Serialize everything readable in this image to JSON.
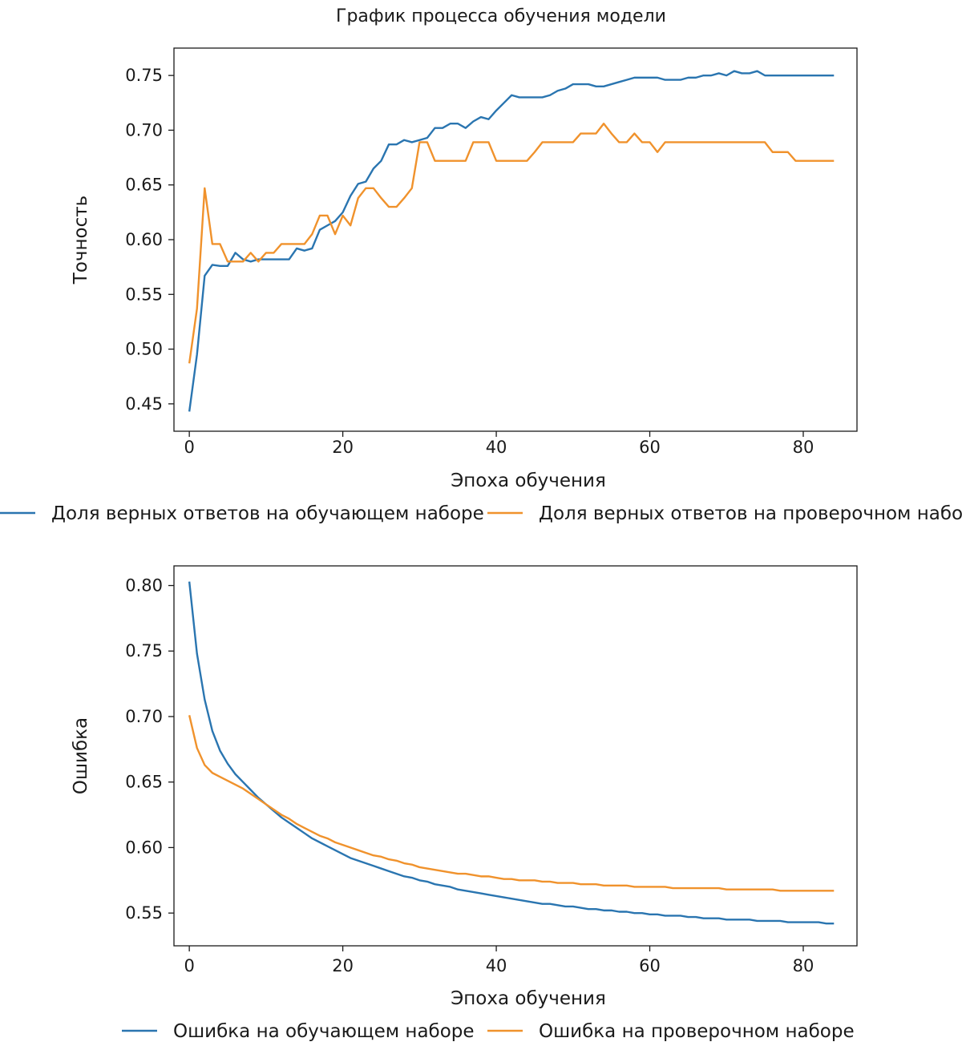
{
  "title": "График процесса обучения модели",
  "colors": {
    "train": "#2a75b0",
    "val": "#f0922c",
    "axis": "#1a1a1a"
  },
  "chart_data": [
    {
      "type": "line",
      "title": "",
      "xlabel": "Эпоха обучения",
      "ylabel": "Точность",
      "xlim": [
        -2,
        87
      ],
      "ylim": [
        0.425,
        0.775
      ],
      "xticks": [
        0,
        20,
        40,
        60,
        80
      ],
      "yticks": [
        0.45,
        0.5,
        0.55,
        0.6,
        0.65,
        0.7,
        0.75
      ],
      "grid": false,
      "legend_position": "bottom",
      "series": [
        {
          "name": "Доля верных ответов на обучающем наборе",
          "color_key": "train",
          "x": [
            0,
            1,
            2,
            3,
            4,
            5,
            6,
            7,
            8,
            9,
            10,
            11,
            12,
            13,
            14,
            15,
            16,
            17,
            18,
            19,
            20,
            21,
            22,
            23,
            24,
            25,
            26,
            27,
            28,
            29,
            30,
            31,
            32,
            33,
            34,
            35,
            36,
            37,
            38,
            39,
            40,
            41,
            42,
            43,
            44,
            45,
            46,
            47,
            48,
            49,
            50,
            51,
            52,
            53,
            54,
            55,
            56,
            57,
            58,
            59,
            60,
            61,
            62,
            63,
            64,
            65,
            66,
            67,
            68,
            69,
            70,
            71,
            72,
            73,
            74,
            75,
            76,
            77,
            78,
            79,
            80,
            81,
            82,
            83,
            84
          ],
          "y": [
            0.443,
            0.495,
            0.567,
            0.577,
            0.576,
            0.576,
            0.588,
            0.582,
            0.58,
            0.582,
            0.582,
            0.582,
            0.582,
            0.582,
            0.592,
            0.59,
            0.592,
            0.609,
            0.613,
            0.617,
            0.625,
            0.64,
            0.651,
            0.653,
            0.665,
            0.672,
            0.687,
            0.687,
            0.691,
            0.689,
            0.691,
            0.693,
            0.702,
            0.702,
            0.706,
            0.706,
            0.702,
            0.708,
            0.712,
            0.71,
            0.718,
            0.725,
            0.732,
            0.73,
            0.73,
            0.73,
            0.73,
            0.732,
            0.736,
            0.738,
            0.742,
            0.742,
            0.742,
            0.74,
            0.74,
            0.742,
            0.744,
            0.746,
            0.748,
            0.748,
            0.748,
            0.748,
            0.746,
            0.746,
            0.746,
            0.748,
            0.748,
            0.75,
            0.75,
            0.752,
            0.75,
            0.754,
            0.752,
            0.752,
            0.754,
            0.75,
            0.75,
            0.75,
            0.75,
            0.75,
            0.75,
            0.75,
            0.75,
            0.75,
            0.75
          ]
        },
        {
          "name": "Доля верных ответов на проверочном наборе",
          "color_key": "val",
          "x": [
            0,
            1,
            2,
            3,
            4,
            5,
            6,
            7,
            8,
            9,
            10,
            11,
            12,
            13,
            14,
            15,
            16,
            17,
            18,
            19,
            20,
            21,
            22,
            23,
            24,
            25,
            26,
            27,
            28,
            29,
            30,
            31,
            32,
            33,
            34,
            35,
            36,
            37,
            38,
            39,
            40,
            41,
            42,
            43,
            44,
            45,
            46,
            47,
            48,
            49,
            50,
            51,
            52,
            53,
            54,
            55,
            56,
            57,
            58,
            59,
            60,
            61,
            62,
            63,
            64,
            65,
            66,
            67,
            68,
            69,
            70,
            71,
            72,
            73,
            74,
            75,
            76,
            77,
            78,
            79,
            80,
            81,
            82,
            83,
            84
          ],
          "y": [
            0.487,
            0.537,
            0.647,
            0.596,
            0.596,
            0.58,
            0.58,
            0.58,
            0.588,
            0.58,
            0.588,
            0.588,
            0.596,
            0.596,
            0.596,
            0.596,
            0.605,
            0.622,
            0.622,
            0.605,
            0.622,
            0.613,
            0.638,
            0.647,
            0.647,
            0.638,
            0.63,
            0.63,
            0.638,
            0.647,
            0.689,
            0.689,
            0.672,
            0.672,
            0.672,
            0.672,
            0.672,
            0.689,
            0.689,
            0.689,
            0.672,
            0.672,
            0.672,
            0.672,
            0.672,
            0.68,
            0.689,
            0.689,
            0.689,
            0.689,
            0.689,
            0.697,
            0.697,
            0.697,
            0.706,
            0.697,
            0.689,
            0.689,
            0.697,
            0.689,
            0.689,
            0.68,
            0.689,
            0.689,
            0.689,
            0.689,
            0.689,
            0.689,
            0.689,
            0.689,
            0.689,
            0.689,
            0.689,
            0.689,
            0.689,
            0.689,
            0.68,
            0.68,
            0.68,
            0.672,
            0.672,
            0.672,
            0.672,
            0.672,
            0.672
          ]
        }
      ]
    },
    {
      "type": "line",
      "title": "",
      "xlabel": "Эпоха обучения",
      "ylabel": "Ошибка",
      "xlim": [
        -2,
        87
      ],
      "ylim": [
        0.525,
        0.815
      ],
      "xticks": [
        0,
        20,
        40,
        60,
        80
      ],
      "yticks": [
        0.55,
        0.6,
        0.65,
        0.7,
        0.75,
        0.8
      ],
      "grid": false,
      "legend_position": "bottom",
      "series": [
        {
          "name": "Ошибка на обучающем наборе",
          "color_key": "train",
          "x": [
            0,
            1,
            2,
            3,
            4,
            5,
            6,
            7,
            8,
            9,
            10,
            11,
            12,
            13,
            14,
            15,
            16,
            17,
            18,
            19,
            20,
            21,
            22,
            23,
            24,
            25,
            26,
            27,
            28,
            29,
            30,
            31,
            32,
            33,
            34,
            35,
            36,
            37,
            38,
            39,
            40,
            41,
            42,
            43,
            44,
            45,
            46,
            47,
            48,
            49,
            50,
            51,
            52,
            53,
            54,
            55,
            56,
            57,
            58,
            59,
            60,
            61,
            62,
            63,
            64,
            65,
            66,
            67,
            68,
            69,
            70,
            71,
            72,
            73,
            74,
            75,
            76,
            77,
            78,
            79,
            80,
            81,
            82,
            83,
            84
          ],
          "y": [
            0.803,
            0.748,
            0.713,
            0.689,
            0.674,
            0.664,
            0.656,
            0.65,
            0.644,
            0.638,
            0.633,
            0.628,
            0.623,
            0.619,
            0.615,
            0.611,
            0.607,
            0.604,
            0.601,
            0.598,
            0.595,
            0.592,
            0.59,
            0.588,
            0.586,
            0.584,
            0.582,
            0.58,
            0.578,
            0.577,
            0.575,
            0.574,
            0.572,
            0.571,
            0.57,
            0.568,
            0.567,
            0.566,
            0.565,
            0.564,
            0.563,
            0.562,
            0.561,
            0.56,
            0.559,
            0.558,
            0.557,
            0.557,
            0.556,
            0.555,
            0.555,
            0.554,
            0.553,
            0.553,
            0.552,
            0.552,
            0.551,
            0.551,
            0.55,
            0.55,
            0.549,
            0.549,
            0.548,
            0.548,
            0.548,
            0.547,
            0.547,
            0.546,
            0.546,
            0.546,
            0.545,
            0.545,
            0.545,
            0.545,
            0.544,
            0.544,
            0.544,
            0.544,
            0.543,
            0.543,
            0.543,
            0.543,
            0.543,
            0.542,
            0.542
          ]
        },
        {
          "name": "Ошибка на проверочном наборе",
          "color_key": "val",
          "x": [
            0,
            1,
            2,
            3,
            4,
            5,
            6,
            7,
            8,
            9,
            10,
            11,
            12,
            13,
            14,
            15,
            16,
            17,
            18,
            19,
            20,
            21,
            22,
            23,
            24,
            25,
            26,
            27,
            28,
            29,
            30,
            31,
            32,
            33,
            34,
            35,
            36,
            37,
            38,
            39,
            40,
            41,
            42,
            43,
            44,
            45,
            46,
            47,
            48,
            49,
            50,
            51,
            52,
            53,
            54,
            55,
            56,
            57,
            58,
            59,
            60,
            61,
            62,
            63,
            64,
            65,
            66,
            67,
            68,
            69,
            70,
            71,
            72,
            73,
            74,
            75,
            76,
            77,
            78,
            79,
            80,
            81,
            82,
            83,
            84
          ],
          "y": [
            0.701,
            0.676,
            0.663,
            0.657,
            0.654,
            0.651,
            0.648,
            0.645,
            0.641,
            0.637,
            0.633,
            0.629,
            0.625,
            0.622,
            0.618,
            0.615,
            0.612,
            0.609,
            0.607,
            0.604,
            0.602,
            0.6,
            0.598,
            0.596,
            0.594,
            0.593,
            0.591,
            0.59,
            0.588,
            0.587,
            0.585,
            0.584,
            0.583,
            0.582,
            0.581,
            0.58,
            0.58,
            0.579,
            0.578,
            0.578,
            0.577,
            0.576,
            0.576,
            0.575,
            0.575,
            0.575,
            0.574,
            0.574,
            0.573,
            0.573,
            0.573,
            0.572,
            0.572,
            0.572,
            0.571,
            0.571,
            0.571,
            0.571,
            0.57,
            0.57,
            0.57,
            0.57,
            0.57,
            0.569,
            0.569,
            0.569,
            0.569,
            0.569,
            0.569,
            0.569,
            0.568,
            0.568,
            0.568,
            0.568,
            0.568,
            0.568,
            0.568,
            0.567,
            0.567,
            0.567,
            0.567,
            0.567,
            0.567,
            0.567,
            0.567
          ]
        }
      ]
    }
  ]
}
